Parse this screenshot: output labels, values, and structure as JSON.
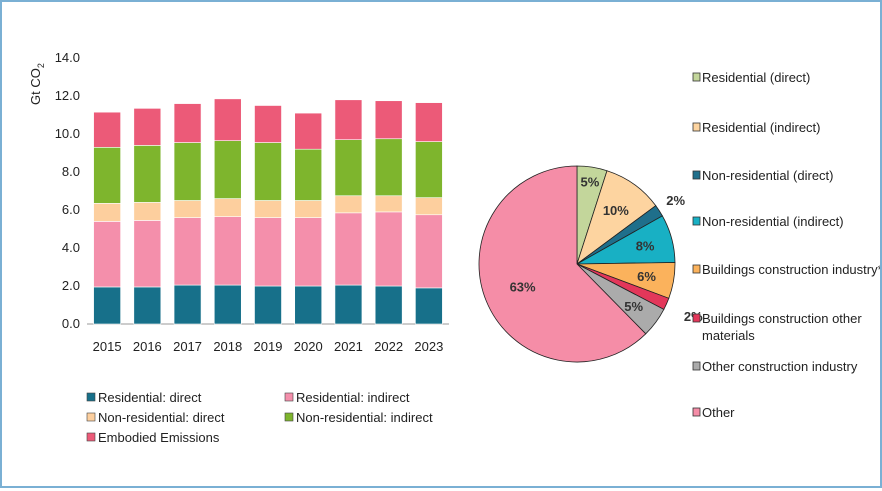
{
  "chart_data": [
    {
      "type": "bar",
      "stacked": true,
      "ylabel": "Gt CO",
      "ylabel_sub": "2",
      "ylim": [
        0,
        14
      ],
      "yticks": [
        "0.0",
        "2.0",
        "4.0",
        "6.0",
        "8.0",
        "10.0",
        "12.0",
        "14.0"
      ],
      "grid": false,
      "categories": [
        "2015",
        "2016",
        "2017",
        "2018",
        "2019",
        "2020",
        "2021",
        "2022",
        "2023"
      ],
      "series": [
        {
          "name": "Residential: direct",
          "color": "#17708a",
          "values": [
            1.95,
            1.95,
            2.05,
            2.05,
            2.0,
            2.0,
            2.05,
            2.0,
            1.9
          ]
        },
        {
          "name": "Residential: indirect",
          "color": "#f48fab",
          "values": [
            3.45,
            3.5,
            3.55,
            3.6,
            3.6,
            3.6,
            3.8,
            3.9,
            3.85
          ]
        },
        {
          "name": "Non-residential: direct",
          "color": "#fdcf9e",
          "values": [
            0.95,
            0.95,
            0.9,
            0.95,
            0.9,
            0.9,
            0.9,
            0.85,
            0.9
          ]
        },
        {
          "name": "Non-residential: indirect",
          "color": "#7eb52d",
          "values": [
            2.95,
            3.0,
            3.05,
            3.05,
            3.05,
            2.7,
            2.95,
            3.0,
            2.95
          ]
        },
        {
          "name": "Embodied Emissions",
          "color": "#ec5a78",
          "values": [
            1.85,
            1.95,
            2.05,
            2.2,
            1.95,
            1.9,
            2.1,
            2.0,
            2.05
          ]
        }
      ],
      "legend_position": "bottom"
    },
    {
      "type": "pie",
      "labels": [
        "Residential (direct)",
        "Residential (indirect)",
        "Non-residential (direct)",
        "Non-residential (indirect)",
        "Buildings construction industry*",
        "Buildings construction other materials",
        "Other construction industry",
        "Other"
      ],
      "values": [
        5,
        10,
        2,
        8,
        6,
        2,
        5,
        63
      ],
      "value_labels": [
        "5%",
        "10%",
        "2%",
        "8%",
        "6%",
        "2%",
        "5%",
        "63%"
      ],
      "colors": [
        "#c3d69b",
        "#fdd4a0",
        "#1f6f8b",
        "#18b0c4",
        "#fbb25c",
        "#e3375a",
        "#ababab",
        "#f58da7"
      ],
      "legend_position": "right"
    }
  ]
}
